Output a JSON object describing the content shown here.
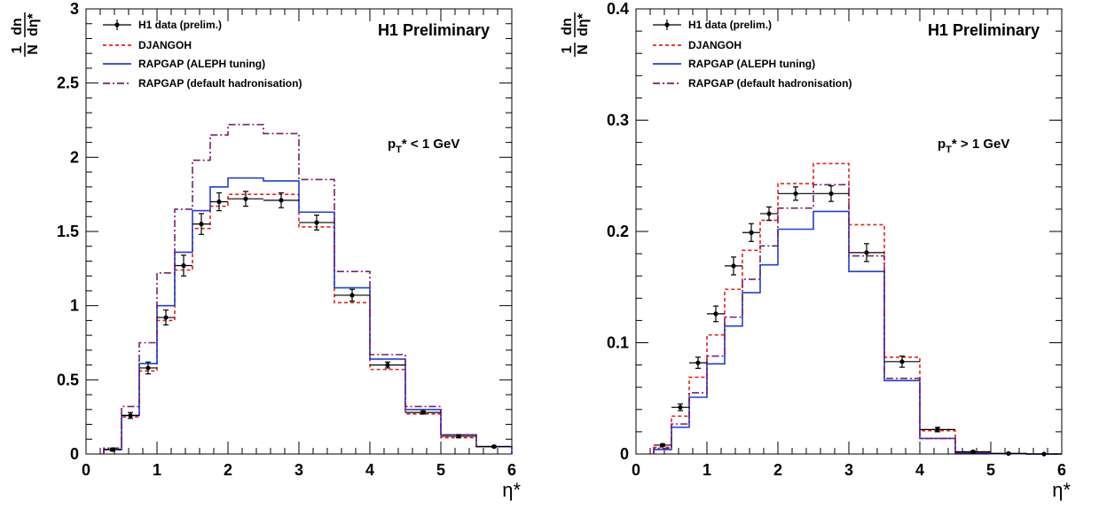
{
  "chart_data": [
    {
      "type": "line",
      "panel_label": "H1 Preliminary",
      "cut_label": {
        "main": "p",
        "sub": "T",
        "rest": "* < 1 GeV"
      },
      "ylabel": {
        "num": "1",
        "den": "N",
        "dn": "dn",
        "deta": "dη*"
      },
      "xlabel": "η*",
      "xlim": [
        0,
        6
      ],
      "ylim": [
        0,
        3
      ],
      "x_ticks": [
        "0",
        "1",
        "2",
        "3",
        "4",
        "5",
        "6"
      ],
      "y_ticks": [
        "0",
        "0.5",
        "1",
        "1.5",
        "2",
        "2.5",
        "3"
      ],
      "bin_edges": [
        0.25,
        0.5,
        0.75,
        1.0,
        1.25,
        1.5,
        1.75,
        2.0,
        2.5,
        3.0,
        3.5,
        4.0,
        4.5,
        5.0,
        5.5,
        6.0
      ],
      "data": {
        "name": "H1 data (prelim.)",
        "x": [
          0.375,
          0.625,
          0.875,
          1.125,
          1.375,
          1.625,
          1.875,
          2.25,
          2.75,
          3.25,
          3.75,
          4.25,
          4.75,
          5.25,
          5.75
        ],
        "xerr": [
          0.125,
          0.125,
          0.125,
          0.125,
          0.125,
          0.125,
          0.125,
          0.25,
          0.25,
          0.25,
          0.25,
          0.25,
          0.25,
          0.25,
          0.25
        ],
        "y": [
          0.03,
          0.26,
          0.58,
          0.92,
          1.27,
          1.55,
          1.7,
          1.72,
          1.71,
          1.56,
          1.07,
          0.6,
          0.28,
          0.12,
          0.05
        ],
        "yerr": [
          0.01,
          0.02,
          0.04,
          0.05,
          0.07,
          0.07,
          0.06,
          0.05,
          0.05,
          0.05,
          0.04,
          0.02,
          0.01,
          0.01,
          0.005
        ]
      },
      "series": [
        {
          "name": "DJANGOH",
          "color": "#e8221e",
          "dash": "4,3",
          "values": [
            0.03,
            0.25,
            0.56,
            0.9,
            1.24,
            1.52,
            1.67,
            1.75,
            1.75,
            1.53,
            1.02,
            0.57,
            0.27,
            0.11,
            0.05
          ]
        },
        {
          "name": "RAPGAP (ALEPH tuning)",
          "color": "#1f3fd8",
          "dash": "",
          "values": [
            0.03,
            0.26,
            0.61,
            1.0,
            1.36,
            1.64,
            1.8,
            1.86,
            1.84,
            1.63,
            1.12,
            0.64,
            0.3,
            0.13,
            0.05
          ]
        },
        {
          "name": "RAPGAP (default hadronisation)",
          "color": "#7a1e6e",
          "dash": "8,3,2,3",
          "values": [
            0.04,
            0.32,
            0.75,
            1.22,
            1.65,
            1.98,
            2.15,
            2.22,
            2.16,
            1.85,
            1.23,
            0.67,
            0.32,
            0.13,
            0.05
          ]
        }
      ]
    },
    {
      "type": "line",
      "panel_label": "H1 Preliminary",
      "cut_label": {
        "main": "p",
        "sub": "T",
        "rest": "* > 1 GeV"
      },
      "ylabel": {
        "num": "1",
        "den": "N",
        "dn": "dn",
        "deta": "dη*"
      },
      "xlabel": "η*",
      "xlim": [
        0,
        6
      ],
      "ylim": [
        0,
        0.4
      ],
      "x_ticks": [
        "0",
        "1",
        "2",
        "3",
        "4",
        "5",
        "6"
      ],
      "y_ticks": [
        "0",
        "0.1",
        "0.2",
        "0.3",
        "0.4"
      ],
      "bin_edges": [
        0.25,
        0.5,
        0.75,
        1.0,
        1.25,
        1.5,
        1.75,
        2.0,
        2.5,
        3.0,
        3.5,
        4.0,
        4.5,
        5.0,
        5.5,
        6.0
      ],
      "data": {
        "name": "H1 data (prelim.)",
        "x": [
          0.375,
          0.625,
          0.875,
          1.125,
          1.375,
          1.625,
          1.875,
          2.25,
          2.75,
          3.25,
          3.75,
          4.25,
          4.75,
          5.25,
          5.75
        ],
        "xerr": [
          0.125,
          0.125,
          0.125,
          0.125,
          0.125,
          0.125,
          0.125,
          0.25,
          0.25,
          0.25,
          0.25,
          0.25,
          0.25,
          0.25,
          0.25
        ],
        "y": [
          0.008,
          0.042,
          0.082,
          0.126,
          0.169,
          0.199,
          0.216,
          0.234,
          0.234,
          0.181,
          0.083,
          0.022,
          0.002,
          0.0005,
          0.0
        ],
        "yerr": [
          0.001,
          0.003,
          0.005,
          0.007,
          0.008,
          0.008,
          0.006,
          0.006,
          0.007,
          0.008,
          0.005,
          0.002,
          0.0005,
          0.0003,
          0.0
        ]
      },
      "series": [
        {
          "name": "DJANGOH",
          "color": "#e8221e",
          "dash": "4,3",
          "values": [
            0.006,
            0.034,
            0.069,
            0.107,
            0.148,
            0.183,
            0.21,
            0.243,
            0.261,
            0.206,
            0.087,
            0.021,
            0.002,
            0.0005,
            0.0
          ]
        },
        {
          "name": "RAPGAP (ALEPH tuning)",
          "color": "#1f3fd8",
          "dash": "",
          "values": [
            0.004,
            0.024,
            0.051,
            0.081,
            0.115,
            0.145,
            0.17,
            0.202,
            0.218,
            0.164,
            0.066,
            0.014,
            0.001,
            0.0003,
            0.0
          ]
        },
        {
          "name": "RAPGAP (default hadronisation)",
          "color": "#7a1e6e",
          "dash": "8,3,2,3",
          "values": [
            0.005,
            0.027,
            0.055,
            0.088,
            0.123,
            0.157,
            0.187,
            0.221,
            0.242,
            0.178,
            0.068,
            0.014,
            0.001,
            0.0003,
            0.0
          ]
        }
      ]
    }
  ]
}
